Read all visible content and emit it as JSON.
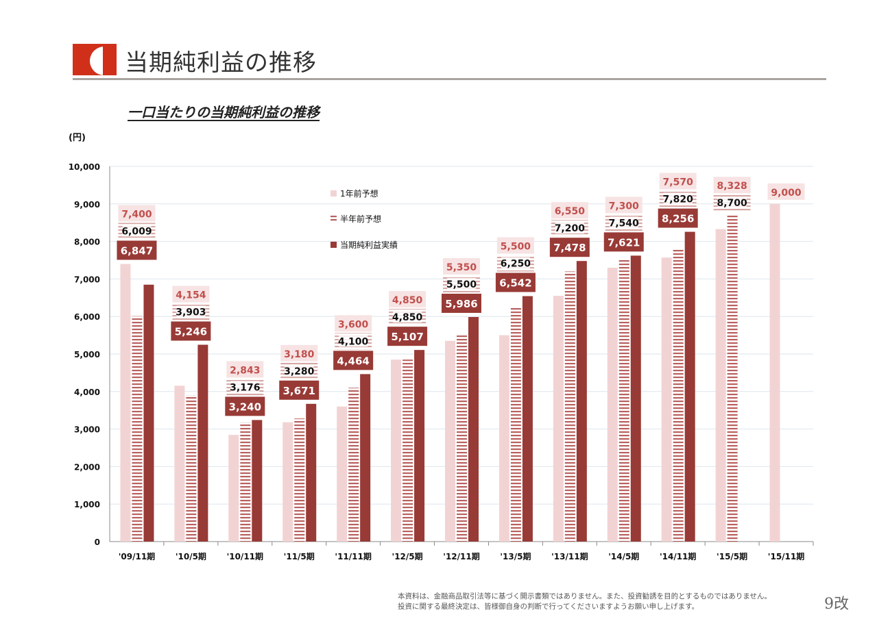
{
  "header": {
    "title": "当期純利益の推移"
  },
  "subtitle": "一口当たりの当期純利益の推移",
  "footer": {
    "line1": "本資料は、金融商品取引法等に基づく開示書類ではありません。また、投資勧誘を目的とするものではありません。",
    "line2": "投資に関する最終決定は、皆様御自身の判断で行ってくださいますようお願い申し上げます。",
    "page": "9改"
  },
  "colors": {
    "forecast_1y": "#f2d3d3",
    "forecast_half": "#b8605e",
    "actual": "#983a36",
    "logo_red": "#d0301a",
    "axis_text": "#111111"
  },
  "chart_data": {
    "type": "bar",
    "title": "",
    "xlabel": "",
    "ylabel": "(円)",
    "ylim": [
      0,
      10000
    ],
    "yticks": [
      "0",
      "1,000",
      "2,000",
      "3,000",
      "4,000",
      "5,000",
      "6,000",
      "7,000",
      "8,000",
      "9,000",
      "10,000"
    ],
    "categories": [
      "'09/11期",
      "'10/5期",
      "'10/11期",
      "'11/5期",
      "'11/11期",
      "'12/5期",
      "'12/11期",
      "'13/5期",
      "'13/11期",
      "'14/5期",
      "'14/11期",
      "'15/5期",
      "'15/11期"
    ],
    "series": [
      {
        "name": "1年前予想",
        "values": [
          7400,
          4154,
          2843,
          3180,
          3600,
          4850,
          5350,
          5500,
          6550,
          7300,
          7570,
          8328,
          9000
        ],
        "labels": [
          "7,400",
          "4,154",
          "2,843",
          "3,180",
          "3,600",
          "4,850",
          "5,350",
          "5,500",
          "6,550",
          "7,300",
          "7,570",
          "8,328",
          "9,000"
        ]
      },
      {
        "name": "半年前予想",
        "values": [
          6009,
          3903,
          3176,
          3280,
          4100,
          4850,
          5500,
          6250,
          7200,
          7540,
          7820,
          8700,
          null
        ],
        "labels": [
          "6,009",
          "3,903",
          "3,176",
          "3,280",
          "4,100",
          "4,850",
          "5,500",
          "6,250",
          "7,200",
          "7,540",
          "7,820",
          "8,700",
          ""
        ]
      },
      {
        "name": "当期純利益実績",
        "values": [
          6847,
          5246,
          3240,
          3671,
          4464,
          5107,
          5986,
          6542,
          7478,
          7621,
          8256,
          null,
          null
        ],
        "labels": [
          "6,847",
          "5,246",
          "3,240",
          "3,671",
          "4,464",
          "5,107",
          "5,986",
          "6,542",
          "7,478",
          "7,621",
          "8,256",
          "",
          ""
        ]
      }
    ],
    "legend_position": "top-left-inside",
    "grid": true
  }
}
